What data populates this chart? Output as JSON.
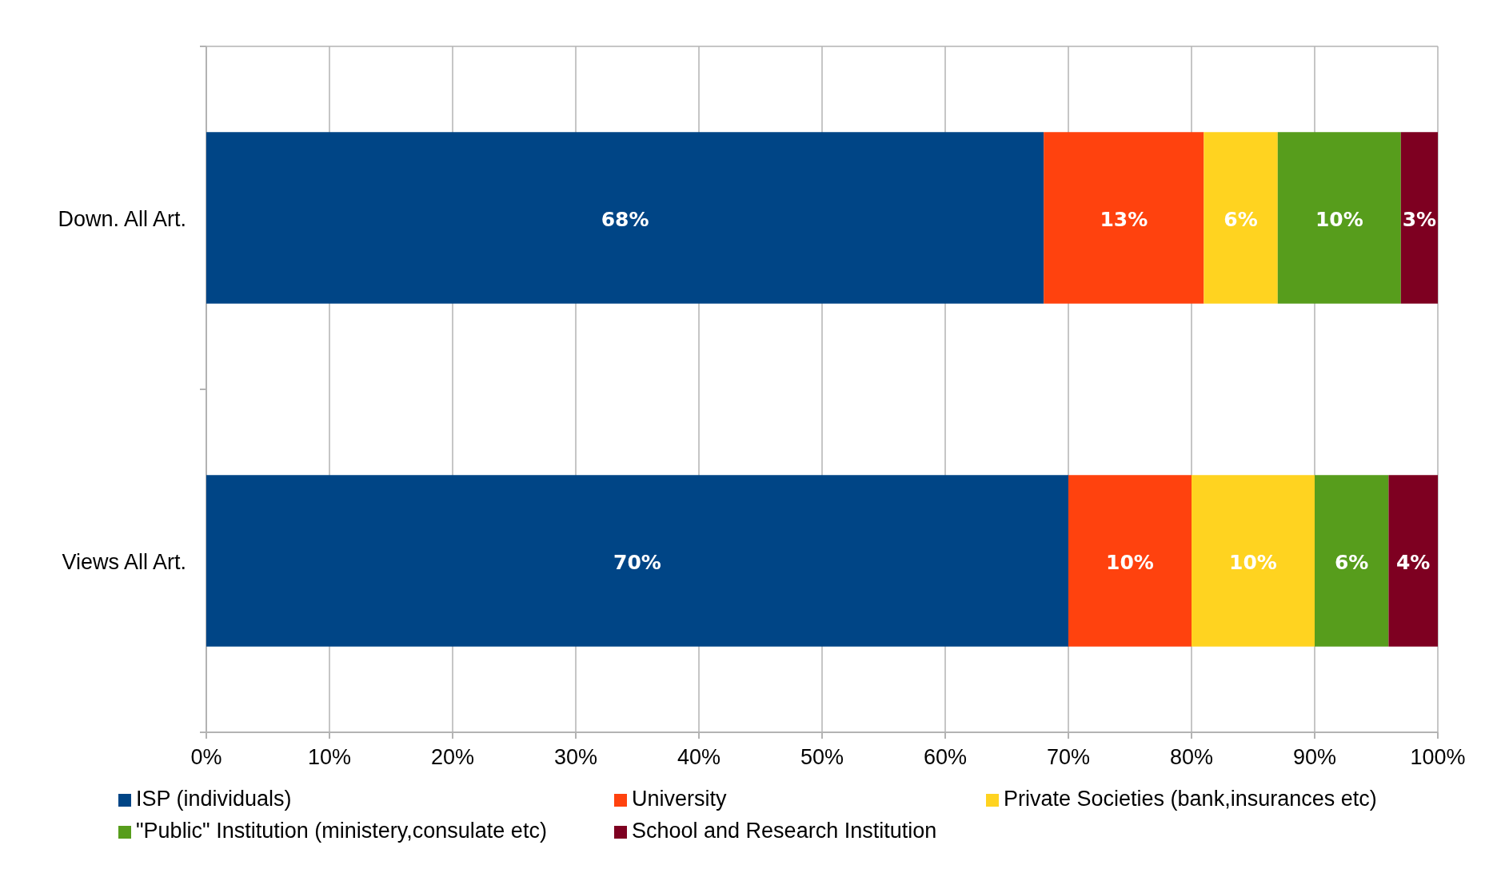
{
  "chart_data": {
    "type": "bar",
    "orientation": "horizontal",
    "stacked": true,
    "categories": [
      "Down. All Art.",
      "Views All Art."
    ],
    "series": [
      {
        "name": "ISP (individuals)",
        "color": "#004586",
        "values": [
          68,
          70
        ],
        "value_labels": [
          "68%",
          "70%"
        ]
      },
      {
        "name": "University",
        "color": "#ff420e",
        "values": [
          13,
          10
        ],
        "value_labels": [
          "13%",
          "10%"
        ]
      },
      {
        "name": "Private Societies (bank,insurances etc)",
        "color": "#ffd320",
        "values": [
          6,
          10
        ],
        "value_labels": [
          "6%",
          "10%"
        ]
      },
      {
        "name": "\"Public\" Institution (ministery,consulate etc)",
        "color": "#579d1c",
        "values": [
          10,
          6
        ],
        "value_labels": [
          "10%",
          "6%"
        ]
      },
      {
        "name": "School and Research Institution",
        "color": "#7e0021",
        "values": [
          3,
          4
        ],
        "value_labels": [
          "3%",
          "4%"
        ]
      }
    ],
    "xlim": [
      0,
      100
    ],
    "xticks": [
      {
        "value": 0,
        "label": "0%"
      },
      {
        "value": 10,
        "label": "10%"
      },
      {
        "value": 20,
        "label": "20%"
      },
      {
        "value": 30,
        "label": "30%"
      },
      {
        "value": 40,
        "label": "40%"
      },
      {
        "value": 50,
        "label": "50%"
      },
      {
        "value": 60,
        "label": "60%"
      },
      {
        "value": 70,
        "label": "70%"
      },
      {
        "value": 80,
        "label": "80%"
      },
      {
        "value": 90,
        "label": "90%"
      },
      {
        "value": 100,
        "label": "100%"
      }
    ],
    "grid": "x",
    "legend": "bottom"
  }
}
